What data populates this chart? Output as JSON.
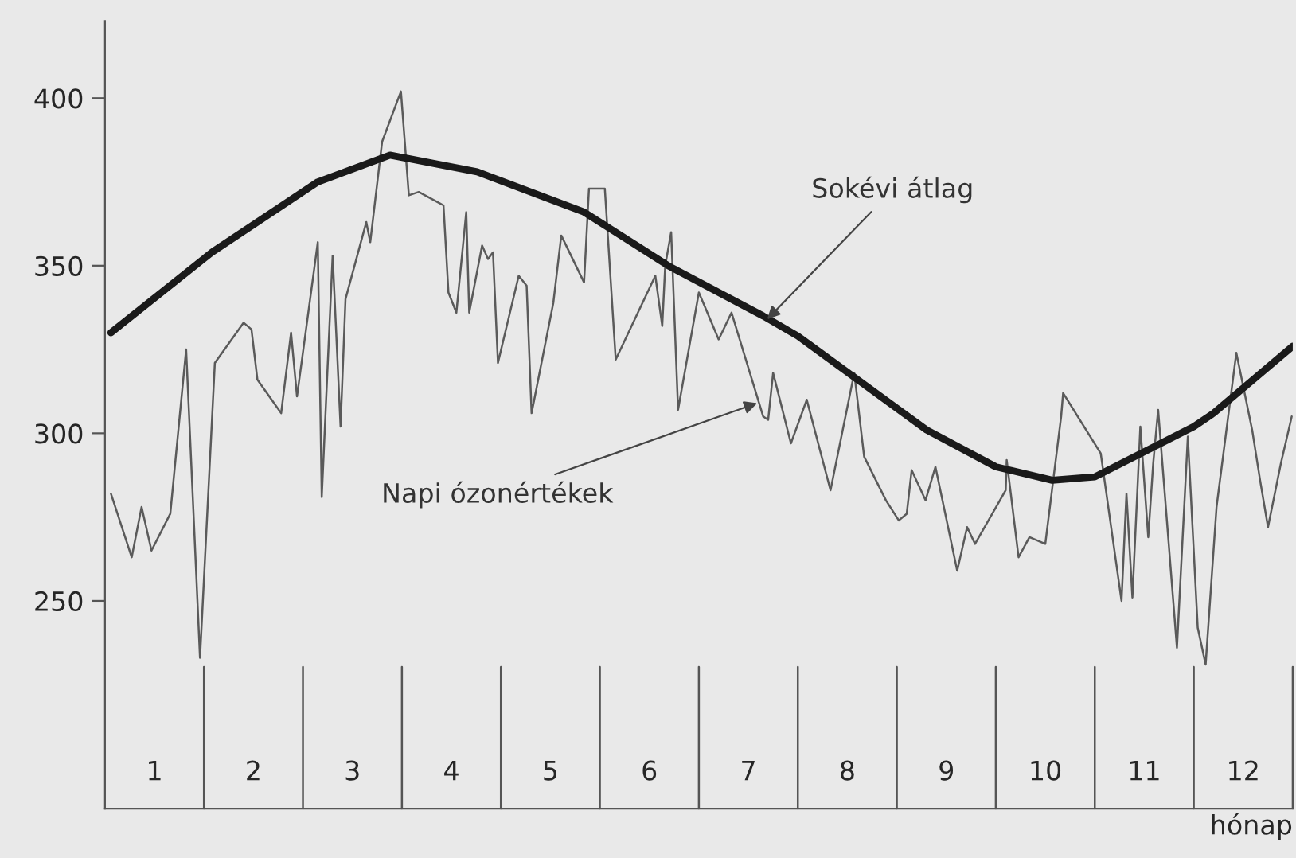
{
  "chart_data": {
    "type": "line",
    "xlabel": "hónap",
    "xlim": [
      0,
      12
    ],
    "ylim": [
      188,
      423
    ],
    "xticks": [
      {
        "value": 0.5,
        "label": "1"
      },
      {
        "value": 1.5,
        "label": "2"
      },
      {
        "value": 2.5,
        "label": "3"
      },
      {
        "value": 3.5,
        "label": "4"
      },
      {
        "value": 4.5,
        "label": "5"
      },
      {
        "value": 5.5,
        "label": "6"
      },
      {
        "value": 6.5,
        "label": "7"
      },
      {
        "value": 7.5,
        "label": "8"
      },
      {
        "value": 8.5,
        "label": "9"
      },
      {
        "value": 9.5,
        "label": "10"
      },
      {
        "value": 10.5,
        "label": "11"
      },
      {
        "value": 11.5,
        "label": "12"
      }
    ],
    "ref_lines": [
      {
        "axis": "x",
        "value": 1
      },
      {
        "axis": "x",
        "value": 2
      },
      {
        "axis": "x",
        "value": 3
      },
      {
        "axis": "x",
        "value": 4
      },
      {
        "axis": "x",
        "value": 5
      },
      {
        "axis": "x",
        "value": 6
      },
      {
        "axis": "x",
        "value": 7
      },
      {
        "axis": "x",
        "value": 8
      },
      {
        "axis": "x",
        "value": 9
      },
      {
        "axis": "x",
        "value": 10
      },
      {
        "axis": "x",
        "value": 11
      },
      {
        "axis": "x",
        "value": 12
      }
    ],
    "yticks": [
      250,
      300,
      350,
      400
    ],
    "grid": false,
    "legend": false,
    "marker": "none",
    "line_style": "solid",
    "series": [
      {
        "color": "#5a5a5a",
        "x": [
          0.06,
          0.27,
          0.37,
          0.47,
          0.66,
          0.82,
          0.96,
          1.11,
          1.4,
          1.48,
          1.54,
          1.78,
          1.88,
          1.94,
          2.15,
          2.19,
          2.3,
          2.38,
          2.43,
          2.64,
          2.68,
          2.8,
          2.99,
          3.07,
          3.17,
          3.42,
          3.47,
          3.55,
          3.65,
          3.68,
          3.81,
          3.87,
          3.92,
          3.97,
          4.18,
          4.26,
          4.31,
          4.53,
          4.61,
          4.84,
          4.89,
          5.05,
          5.16,
          5.56,
          5.63,
          5.66,
          5.72,
          5.79,
          6.0,
          6.2,
          6.33,
          6.65,
          6.7,
          6.75,
          6.93,
          7.09,
          7.33,
          7.57,
          7.67,
          7.89,
          8.02,
          8.1,
          8.15,
          8.29,
          8.39,
          8.61,
          8.71,
          8.79,
          9.1,
          9.11,
          9.23,
          9.34,
          9.5,
          9.66,
          9.68,
          10.06,
          10.27,
          10.32,
          10.38,
          10.46,
          10.54,
          10.59,
          10.64,
          10.83,
          10.94,
          11.04,
          11.12,
          11.23,
          11.43,
          11.59,
          11.67,
          11.75,
          11.88,
          11.99
        ],
        "values": [
          282,
          263,
          278,
          265,
          276,
          325,
          233,
          321,
          333,
          331,
          316,
          306,
          330,
          311,
          357,
          281,
          353,
          302,
          340,
          363,
          357,
          387,
          402,
          371,
          372,
          368,
          342,
          336,
          366,
          336,
          356,
          352,
          354,
          321,
          347,
          344,
          306,
          339,
          359,
          345,
          373,
          373,
          322,
          347,
          332,
          350,
          360,
          307,
          342,
          328,
          336,
          305,
          304,
          318,
          297,
          310,
          283,
          318,
          293,
          280,
          274,
          276,
          289,
          280,
          290,
          259,
          272,
          267,
          283,
          292,
          263,
          269,
          267,
          305,
          312,
          294,
          250,
          282,
          251,
          302,
          269,
          291,
          307,
          236,
          299,
          242,
          231,
          278,
          324,
          301,
          286,
          272,
          291,
          305
        ]
      },
      {
        "color": "#1a1a1a",
        "x": [
          0.06,
          1.08,
          2.15,
          2.88,
          3.76,
          4.84,
          5.69,
          6.65,
          7.0,
          8.3,
          9.0,
          9.57,
          10.0,
          11.0,
          11.2,
          12.0
        ],
        "values": [
          330,
          354,
          375,
          383,
          378,
          366,
          350,
          335,
          329,
          301,
          290,
          286,
          287,
          302,
          306,
          326
        ]
      }
    ],
    "annotations": [
      {
        "text": "Sokévi átlag",
        "x": 6.69,
        "y": 334
      },
      {
        "text": "Napi ózonértékek",
        "x": 6.59,
        "y": 309
      }
    ]
  }
}
